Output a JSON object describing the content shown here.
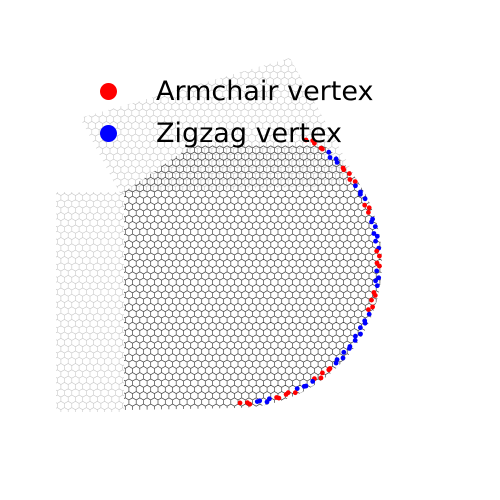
{
  "legend": {
    "items": [
      {
        "label": "Armchair vertex",
        "color": "#ff0000"
      },
      {
        "label": "Zigzag vertex",
        "color": "#0000ff"
      }
    ]
  },
  "lattice": {
    "line_color": "#444444",
    "faded_line_color": "#c8c8c8"
  }
}
